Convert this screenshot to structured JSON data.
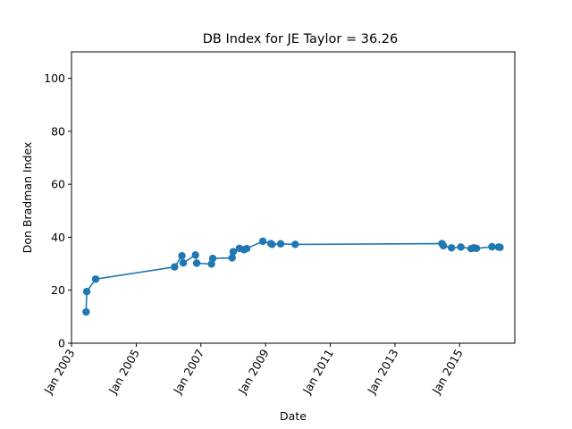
{
  "chart_data": {
    "type": "line",
    "title": "DB Index for JE Taylor = 36.26",
    "xlabel": "Date",
    "ylabel": "Don Bradman Index",
    "ylim": [
      0,
      110
    ],
    "xlim": [
      "2003-01-01",
      "2016-09-15"
    ],
    "yticks": [
      0,
      20,
      40,
      60,
      80,
      100
    ],
    "xticks": [
      {
        "date": "2003-01-01",
        "label": "Jan 2003"
      },
      {
        "date": "2005-01-01",
        "label": "Jan 2005"
      },
      {
        "date": "2007-01-01",
        "label": "Jan 2007"
      },
      {
        "date": "2009-01-01",
        "label": "Jan 2009"
      },
      {
        "date": "2011-01-01",
        "label": "Jan 2011"
      },
      {
        "date": "2013-01-01",
        "label": "Jan 2013"
      },
      {
        "date": "2015-01-01",
        "label": "Jan 2015"
      }
    ],
    "grid": false,
    "marker": "circle",
    "series": [
      {
        "color": "#1f77b4",
        "points": [
          {
            "x": "2003-06-15",
            "y": 11.8
          },
          {
            "x": "2003-06-22",
            "y": 19.5
          },
          {
            "x": "2003-10-01",
            "y": 24.2
          },
          {
            "x": "2006-03-10",
            "y": 28.8
          },
          {
            "x": "2006-06-01",
            "y": 33.0
          },
          {
            "x": "2006-06-15",
            "y": 30.3
          },
          {
            "x": "2006-11-01",
            "y": 33.3
          },
          {
            "x": "2006-11-15",
            "y": 30.2
          },
          {
            "x": "2007-05-01",
            "y": 29.9
          },
          {
            "x": "2007-05-15",
            "y": 32.0
          },
          {
            "x": "2007-12-20",
            "y": 32.2
          },
          {
            "x": "2008-01-01",
            "y": 34.5
          },
          {
            "x": "2008-03-10",
            "y": 35.8
          },
          {
            "x": "2008-05-01",
            "y": 35.3
          },
          {
            "x": "2008-06-01",
            "y": 35.7
          },
          {
            "x": "2008-12-01",
            "y": 38.5
          },
          {
            "x": "2009-03-01",
            "y": 37.6
          },
          {
            "x": "2009-03-15",
            "y": 37.3
          },
          {
            "x": "2009-06-20",
            "y": 37.5
          },
          {
            "x": "2009-12-01",
            "y": 37.3
          },
          {
            "x": "2014-06-15",
            "y": 37.6
          },
          {
            "x": "2014-07-01",
            "y": 36.8
          },
          {
            "x": "2014-10-01",
            "y": 36.0
          },
          {
            "x": "2015-01-15",
            "y": 36.3
          },
          {
            "x": "2015-05-10",
            "y": 35.7
          },
          {
            "x": "2015-06-10",
            "y": 36.0
          },
          {
            "x": "2015-07-10",
            "y": 35.8
          },
          {
            "x": "2016-01-01",
            "y": 36.4
          },
          {
            "x": "2016-03-15",
            "y": 36.3
          },
          {
            "x": "2016-04-01",
            "y": 36.2
          }
        ]
      }
    ]
  }
}
